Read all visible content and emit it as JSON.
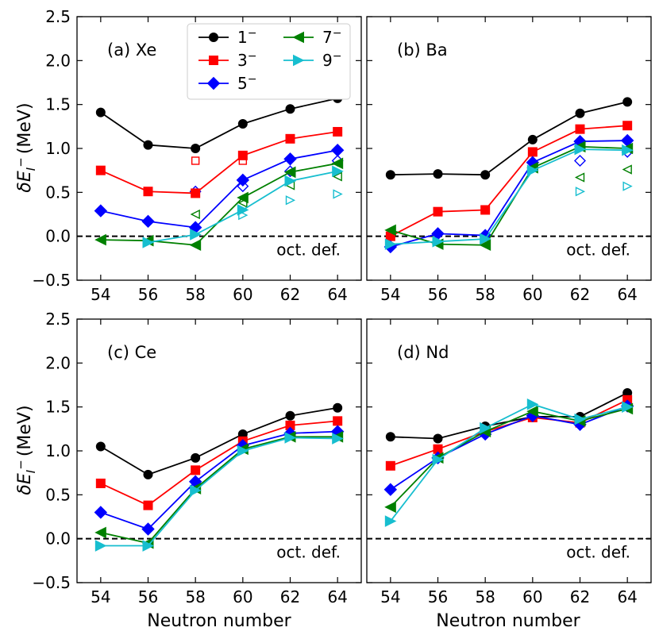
{
  "figure": {
    "shared_ylabel_main": "δE",
    "shared_ylabel_sub": "I",
    "shared_ylabel_sup": "−",
    "shared_ylabel_unit": "(MeV)",
    "shared_xlabel": "Neutron number",
    "reference_annotation": "oct. def."
  },
  "legend": [
    {
      "name": "1",
      "sup": "−",
      "color": "#000000",
      "marker": "circle"
    },
    {
      "name": "3",
      "sup": "−",
      "color": "#ff0000",
      "marker": "square"
    },
    {
      "name": "5",
      "sup": "−",
      "color": "#0000ff",
      "marker": "diamond"
    },
    {
      "name": "7",
      "sup": "−",
      "color": "#008000",
      "marker": "triangle-left"
    },
    {
      "name": "9",
      "sup": "−",
      "color": "#17becf",
      "marker": "triangle-right"
    }
  ],
  "chart_data": [
    {
      "type": "line",
      "title": "(a) Xe",
      "x": [
        54,
        56,
        58,
        60,
        62,
        64
      ],
      "xticks": [
        "54",
        "56",
        "58",
        "60",
        "62",
        "64"
      ],
      "ylim": [
        -0.5,
        2.5
      ],
      "yticks": [
        "−0.5",
        "0.0",
        "0.5",
        "1.0",
        "1.5",
        "2.0",
        "2.5"
      ],
      "series": [
        {
          "name": "1−",
          "values": [
            1.41,
            1.04,
            1.0,
            1.28,
            1.45,
            1.57
          ]
        },
        {
          "name": "3−",
          "values": [
            0.75,
            0.51,
            0.49,
            0.92,
            1.11,
            1.19
          ]
        },
        {
          "name": "5−",
          "values": [
            0.29,
            0.17,
            0.1,
            0.64,
            0.88,
            0.98
          ]
        },
        {
          "name": "7−",
          "values": [
            -0.04,
            -0.05,
            -0.1,
            0.44,
            0.73,
            0.83
          ]
        },
        {
          "name": "9−",
          "values": [
            null,
            -0.07,
            0.02,
            0.3,
            0.63,
            0.74
          ]
        }
      ],
      "open_markers": [
        {
          "series": "3−",
          "points": [
            [
              58,
              0.86
            ],
            [
              60,
              0.86
            ]
          ]
        },
        {
          "series": "5−",
          "points": [
            [
              58,
              0.51
            ],
            [
              60,
              0.57
            ],
            [
              62,
              0.74
            ],
            [
              64,
              0.86
            ]
          ]
        },
        {
          "series": "7−",
          "points": [
            [
              58,
              0.25
            ],
            [
              60,
              0.38
            ],
            [
              62,
              0.58
            ],
            [
              64,
              0.68
            ]
          ]
        },
        {
          "series": "9−",
          "points": [
            [
              60,
              0.24
            ],
            [
              62,
              0.41
            ],
            [
              64,
              0.48
            ]
          ]
        }
      ],
      "reference_line": 0
    },
    {
      "type": "line",
      "title": "(b) Ba",
      "x": [
        54,
        56,
        58,
        60,
        62,
        64
      ],
      "xticks": [
        "54",
        "56",
        "58",
        "60",
        "62",
        "64"
      ],
      "ylim": [
        -0.5,
        2.5
      ],
      "series": [
        {
          "name": "1−",
          "values": [
            0.7,
            0.71,
            0.7,
            1.1,
            1.4,
            1.53
          ]
        },
        {
          "name": "3−",
          "values": [
            0.0,
            0.28,
            0.3,
            0.96,
            1.22,
            1.26
          ]
        },
        {
          "name": "5−",
          "values": [
            -0.12,
            0.03,
            0.01,
            0.84,
            1.08,
            1.09
          ]
        },
        {
          "name": "7−",
          "values": [
            0.07,
            -0.09,
            -0.1,
            0.78,
            1.02,
            1.0
          ]
        },
        {
          "name": "9−",
          "values": [
            -0.09,
            -0.06,
            -0.03,
            0.75,
            0.99,
            0.98
          ]
        }
      ],
      "open_markers": [
        {
          "series": "5−",
          "points": [
            [
              62,
              0.86
            ],
            [
              64,
              0.96
            ]
          ]
        },
        {
          "series": "7−",
          "points": [
            [
              62,
              0.67
            ],
            [
              64,
              0.76
            ]
          ]
        },
        {
          "series": "9−",
          "points": [
            [
              62,
              0.51
            ],
            [
              64,
              0.57
            ]
          ]
        }
      ],
      "reference_line": 0
    },
    {
      "type": "line",
      "title": "(c) Ce",
      "x": [
        54,
        56,
        58,
        60,
        62,
        64
      ],
      "xticks": [
        "54",
        "56",
        "58",
        "60",
        "62",
        "64"
      ],
      "ylim": [
        -0.5,
        2.5
      ],
      "yticks": [
        "−0.5",
        "0.0",
        "0.5",
        "1.0",
        "1.5",
        "2.0",
        "2.5"
      ],
      "series": [
        {
          "name": "1−",
          "values": [
            1.05,
            0.73,
            0.92,
            1.19,
            1.4,
            1.49
          ]
        },
        {
          "name": "3−",
          "values": [
            0.63,
            0.38,
            0.78,
            1.11,
            1.29,
            1.34
          ]
        },
        {
          "name": "5−",
          "values": [
            0.3,
            0.11,
            0.65,
            1.06,
            1.2,
            1.22
          ]
        },
        {
          "name": "7−",
          "values": [
            0.07,
            -0.05,
            0.57,
            1.02,
            1.16,
            1.16
          ]
        },
        {
          "name": "9−",
          "values": [
            -0.08,
            -0.08,
            0.55,
            1.0,
            1.15,
            1.14
          ]
        }
      ],
      "reference_line": 0
    },
    {
      "type": "line",
      "title": "(d) Nd",
      "x": [
        54,
        56,
        58,
        60,
        62,
        64
      ],
      "xticks": [
        "54",
        "56",
        "58",
        "60",
        "62",
        "64"
      ],
      "ylim": [
        -0.5,
        2.5
      ],
      "series": [
        {
          "name": "1−",
          "values": [
            1.16,
            1.14,
            1.28,
            1.39,
            1.39,
            1.66
          ]
        },
        {
          "name": "3−",
          "values": [
            0.83,
            1.02,
            1.22,
            1.38,
            1.32,
            1.58
          ]
        },
        {
          "name": "5−",
          "values": [
            0.56,
            0.92,
            1.19,
            1.4,
            1.3,
            1.51
          ]
        },
        {
          "name": "7−",
          "values": [
            0.36,
            0.92,
            1.22,
            1.45,
            1.34,
            1.48
          ]
        },
        {
          "name": "9−",
          "values": [
            0.2,
            0.9,
            1.26,
            1.53,
            1.36,
            1.5
          ]
        }
      ],
      "reference_line": 0
    }
  ]
}
